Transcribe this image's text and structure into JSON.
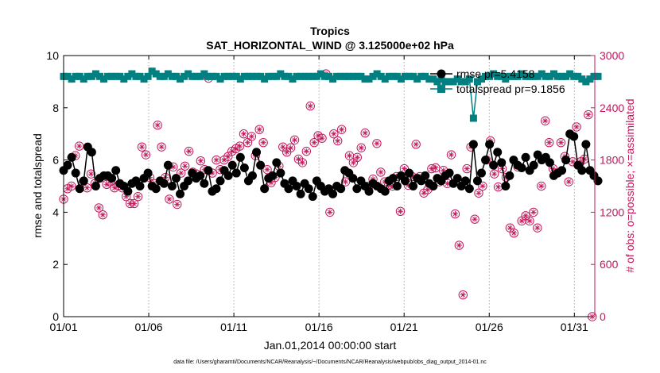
{
  "chart_data": {
    "type": "line",
    "title": "Tropics",
    "subtitle": "SAT_HORIZONTAL_WIND @ 3.125000e+02 hPa",
    "xlabel": "Jan.01,2014 00:00:00 start",
    "ylabel_left": "rmse and totalspread",
    "ylabel_right": "# of obs: o=possible; ×=assimilated",
    "x_ticks": [
      "01/01",
      "01/06",
      "01/11",
      "01/16",
      "01/21",
      "01/26",
      "01/31"
    ],
    "x_tick_days": [
      0,
      5,
      10,
      15,
      20,
      25,
      30
    ],
    "xlim": [
      0,
      31.2
    ],
    "ylim_left": [
      0,
      10
    ],
    "yticks_left": [
      "0",
      "2",
      "4",
      "6",
      "8",
      "10"
    ],
    "ylim_right": [
      0,
      3000
    ],
    "yticks_right": [
      "0",
      "600",
      "1200",
      "1800",
      "2400",
      "3000"
    ],
    "footnote": "data file: /Users/gharamti/Documents/NCAR/Reanalysis/~/Documents/NCAR/Reanalysis/webpub/obs_diag_output_2014-01.nc",
    "colors": {
      "rmse": "#000000",
      "spread": "#008080",
      "obs": "#c2185b"
    },
    "series": [
      {
        "name": "rmse pr=5.4158",
        "values": [
          5.6,
          5.8,
          6.1,
          5.5,
          4.9,
          5.2,
          6.5,
          6.3,
          5.0,
          5.3,
          5.4,
          5.4,
          5.3,
          5.6,
          5.1,
          5.0,
          4.8,
          5.1,
          5.2,
          5.0,
          5.3,
          5.5,
          5.0,
          4.9,
          5.2,
          5.1,
          5.8,
          5.0,
          5.3,
          4.7,
          5.0,
          5.2,
          5.5,
          5.3,
          5.4,
          5.1,
          5.6,
          4.8,
          4.9,
          5.2,
          5.6,
          5.4,
          5.8,
          5.5,
          6.1,
          5.7,
          5.2,
          5.4,
          6.3,
          5.8,
          4.9,
          5.3,
          5.4,
          5.9,
          5.5,
          5.1,
          4.9,
          5.2,
          5.0,
          4.7,
          5.1,
          4.9,
          4.6,
          5.2,
          5.0,
          4.8,
          4.9,
          4.7,
          5.0,
          4.9,
          5.6,
          5.5,
          5.3,
          4.9,
          5.2,
          5.0,
          4.8,
          5.1,
          5.0,
          4.9,
          4.8,
          5.2,
          5.3,
          5.0,
          5.4,
          5.2,
          5.5,
          5.0,
          5.3,
          5.2,
          5.4,
          5.1,
          5.0,
          5.3,
          5.2,
          5.4,
          5.5,
          5.1,
          5.3,
          5.0,
          5.2,
          4.9,
          6.6,
          5.2,
          5.5,
          6.0,
          6.6,
          5.8,
          6.3,
          5.9,
          5.0,
          5.4,
          6.0,
          5.8,
          5.7,
          6.1,
          5.6,
          5.8,
          6.2,
          6.0,
          6.1,
          5.9,
          5.4,
          5.5,
          5.6,
          6.0,
          7.0,
          6.9,
          5.8,
          5.6,
          6.6,
          5.6,
          5.4,
          5.2
        ],
        "values_x_start": 0,
        "values_x_step": 0.236
      },
      {
        "name": "totalspread pr=9.1856",
        "values": [
          9.2,
          9.2,
          9.1,
          9.2,
          9.2,
          9.1,
          9.2,
          9.2,
          9.3,
          9.2,
          9.1,
          9.2,
          9.2,
          9.2,
          9.2,
          9.1,
          9.2,
          9.3,
          9.2,
          9.2,
          9.1,
          9.2,
          9.4,
          9.3,
          9.2,
          9.2,
          9.3,
          9.2,
          9.2,
          9.1,
          9.2,
          9.3,
          9.2,
          9.2,
          9.2,
          9.3,
          9.2,
          9.2,
          9.2,
          9.1,
          9.2,
          9.2,
          9.2,
          9.2,
          9.1,
          9.2,
          9.2,
          9.2,
          9.2,
          9.2,
          9.1,
          9.2,
          9.2,
          9.2,
          9.3,
          9.2,
          9.2,
          9.1,
          9.2,
          9.2,
          9.2,
          9.2,
          9.2,
          9.2,
          9.3,
          9.2,
          9.2,
          9.1,
          9.2,
          9.2,
          9.2,
          9.2,
          9.2,
          9.2,
          9.2,
          9.1,
          9.1,
          9.2,
          9.3,
          9.2,
          9.1,
          9.2,
          9.2,
          9.2,
          9.1,
          9.2,
          9.2,
          9.2,
          9.1,
          9.2,
          9.2,
          9.1,
          9.1,
          9.0,
          9.1,
          9.0,
          9.0,
          9.0,
          9.1,
          9.0,
          9.0,
          9.1,
          7.6,
          9.0,
          9.1,
          9.2,
          9.2,
          9.3,
          9.2,
          9.2,
          9.1,
          9.2,
          9.2,
          9.2,
          9.3,
          9.2,
          9.2,
          9.2,
          9.2,
          9.3,
          9.2,
          9.2,
          9.3,
          9.2,
          9.2,
          9.2,
          9.3,
          9.2,
          9.2,
          9.1,
          9.0,
          9.1,
          9.2,
          9.2
        ],
        "values_x_start": 0,
        "values_x_step": 0.236
      },
      {
        "name": "# of obs",
        "axis": "right",
        "values": [
          1350,
          1470,
          1500,
          1850,
          1960,
          1550,
          1480,
          1640,
          1530,
          1250,
          1170,
          1520,
          1550,
          1480,
          1510,
          1480,
          1380,
          1300,
          1300,
          1380,
          1950,
          1860,
          1600,
          1530,
          2200,
          1950,
          1600,
          1350,
          1720,
          1290,
          1650,
          1730,
          1900,
          1660,
          1640,
          1790,
          1690,
          2740,
          1650,
          1800,
          1690,
          1800,
          1840,
          1900,
          1930,
          1960,
          2100,
          2000,
          2070,
          1850,
          2150,
          2000,
          1690,
          1540,
          1600,
          1730,
          1950,
          1890,
          1940,
          2030,
          1810,
          1770,
          1900,
          2420,
          2000,
          2080,
          2050,
          2790,
          1200,
          2100,
          2020,
          2150,
          1550,
          1850,
          1770,
          1830,
          1940,
          2110,
          1500,
          1580,
          1990,
          1660,
          1550,
          1510,
          1500,
          1610,
          1210,
          1700,
          1510,
          1610,
          1980,
          1610,
          1420,
          1460,
          1700,
          1710,
          1550,
          1680,
          1530,
          1860,
          1180,
          820,
          250,
          1700,
          1950,
          1120,
          1420,
          1500,
          1800,
          2020,
          1640,
          1490,
          1700,
          1600,
          1020,
          960,
          1720,
          1100,
          1160,
          1100,
          1200,
          1020,
          1500,
          2250,
          2000,
          1700,
          1650,
          2000,
          1840,
          1550,
          1780,
          2180,
          1780,
          1810,
          2320,
          0
        ],
        "values_x_start": 0,
        "values_x_step": 0.23
      }
    ]
  }
}
